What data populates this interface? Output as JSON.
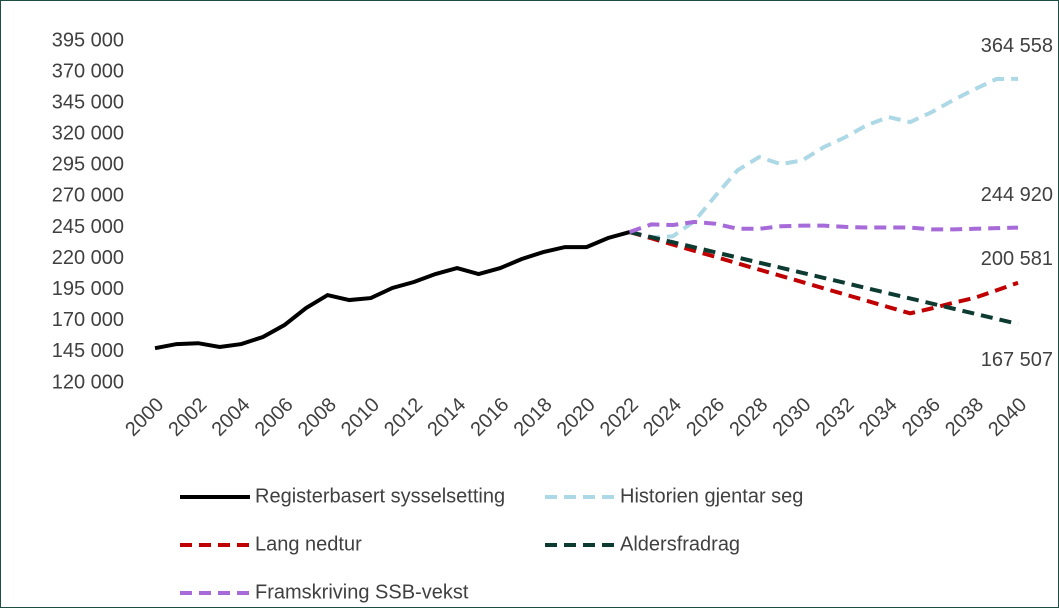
{
  "chart_data": {
    "type": "line",
    "x": [
      2000,
      2001,
      2002,
      2003,
      2004,
      2005,
      2006,
      2007,
      2008,
      2009,
      2010,
      2011,
      2012,
      2013,
      2014,
      2015,
      2016,
      2017,
      2018,
      2019,
      2020,
      2021,
      2022,
      2023,
      2024,
      2025,
      2026,
      2027,
      2028,
      2029,
      2030,
      2031,
      2032,
      2033,
      2034,
      2035,
      2036,
      2037,
      2038,
      2039,
      2040
    ],
    "xlim": [
      2000,
      2040
    ],
    "xticks": [
      2000,
      2002,
      2004,
      2006,
      2008,
      2010,
      2012,
      2014,
      2016,
      2018,
      2020,
      2022,
      2024,
      2026,
      2028,
      2030,
      2032,
      2034,
      2036,
      2038,
      2040
    ],
    "ylim": [
      120000,
      395000
    ],
    "yticks": [
      {
        "value": 120000,
        "label": "120 000"
      },
      {
        "value": 145000,
        "label": "145 000"
      },
      {
        "value": 170000,
        "label": "170 000"
      },
      {
        "value": 195000,
        "label": "195 000"
      },
      {
        "value": 220000,
        "label": "220 000"
      },
      {
        "value": 245000,
        "label": "245 000"
      },
      {
        "value": 270000,
        "label": "270 000"
      },
      {
        "value": 295000,
        "label": "295 000"
      },
      {
        "value": 320000,
        "label": "320 000"
      },
      {
        "value": 345000,
        "label": "345 000"
      },
      {
        "value": 370000,
        "label": "370 000"
      },
      {
        "value": 395000,
        "label": "395 000"
      }
    ],
    "legend": "bottom",
    "series": [
      {
        "name": "Registerbasert sysselsetting",
        "color": "#000000",
        "dashed": false,
        "values": [
          148000,
          151300,
          152000,
          149000,
          151300,
          157000,
          166600,
          180300,
          190700,
          186700,
          188300,
          196400,
          201200,
          207600,
          212400,
          207600,
          212400,
          219700,
          225300,
          229300,
          229300,
          236600,
          241400,
          null,
          null,
          null,
          null,
          null,
          null,
          null,
          null,
          null,
          null,
          null,
          null,
          null,
          null,
          null,
          null,
          null,
          null
        ]
      },
      {
        "name": "Historien gjentar seg",
        "color": "#add8e6",
        "dashed": true,
        "values": [
          null,
          null,
          null,
          null,
          null,
          null,
          null,
          null,
          null,
          null,
          null,
          null,
          null,
          null,
          null,
          null,
          null,
          null,
          null,
          null,
          null,
          null,
          241400,
          237000,
          238000,
          250000,
          271000,
          291000,
          301700,
          296000,
          299000,
          309700,
          317700,
          327400,
          333800,
          329800,
          337800,
          347500,
          356300,
          364400,
          364558
        ],
        "value_labels": [
          null,
          null,
          null,
          null,
          null,
          null,
          null,
          null,
          null,
          null,
          null,
          null,
          null,
          null,
          null,
          null,
          null,
          null,
          null,
          null,
          null,
          null,
          null,
          null,
          null,
          null,
          null,
          null,
          null,
          null,
          null,
          null,
          null,
          null,
          null,
          null,
          null,
          null,
          null,
          null,
          "364 558"
        ]
      },
      {
        "name": "Lang nedtur",
        "color": "#c00000",
        "dashed": true,
        "values": [
          null,
          null,
          null,
          null,
          null,
          null,
          null,
          null,
          null,
          null,
          null,
          null,
          null,
          null,
          null,
          null,
          null,
          null,
          null,
          null,
          null,
          null,
          241400,
          236400,
          231300,
          226300,
          221300,
          216200,
          211200,
          206200,
          201200,
          196100,
          191100,
          186100,
          181000,
          176000,
          180000,
          184500,
          188500,
          194500,
          200581
        ],
        "value_labels": [
          null,
          null,
          null,
          null,
          null,
          null,
          null,
          null,
          null,
          null,
          null,
          null,
          null,
          null,
          null,
          null,
          null,
          null,
          null,
          null,
          null,
          null,
          null,
          null,
          null,
          null,
          null,
          null,
          null,
          null,
          null,
          null,
          null,
          null,
          null,
          null,
          null,
          null,
          null,
          null,
          "200 581"
        ]
      },
      {
        "name": "Aldersfradrag",
        "color": "#0d3b32",
        "dashed": true,
        "values": [
          null,
          null,
          null,
          null,
          null,
          null,
          null,
          null,
          null,
          null,
          null,
          null,
          null,
          null,
          null,
          null,
          null,
          null,
          null,
          null,
          null,
          null,
          241400,
          237300,
          233200,
          229100,
          225000,
          220900,
          216800,
          212700,
          208600,
          204500,
          200400,
          196200,
          192100,
          188000,
          183900,
          179800,
          175700,
          171600,
          167507
        ],
        "value_labels": [
          null,
          null,
          null,
          null,
          null,
          null,
          null,
          null,
          null,
          null,
          null,
          null,
          null,
          null,
          null,
          null,
          null,
          null,
          null,
          null,
          null,
          null,
          null,
          null,
          null,
          null,
          null,
          null,
          null,
          null,
          null,
          null,
          null,
          null,
          null,
          null,
          null,
          null,
          null,
          null,
          "167 507"
        ]
      },
      {
        "name": "Framskriving SSB-vekst",
        "color": "#a66ad9",
        "dashed": true,
        "values": [
          null,
          null,
          null,
          null,
          null,
          null,
          null,
          null,
          null,
          null,
          null,
          null,
          null,
          null,
          null,
          null,
          null,
          null,
          null,
          null,
          null,
          null,
          241400,
          247500,
          247000,
          249500,
          248000,
          244000,
          244000,
          246000,
          246500,
          246500,
          245500,
          245000,
          245000,
          245000,
          243500,
          243500,
          244000,
          244500,
          244920
        ],
        "value_labels": [
          null,
          null,
          null,
          null,
          null,
          null,
          null,
          null,
          null,
          null,
          null,
          null,
          null,
          null,
          null,
          null,
          null,
          null,
          null,
          null,
          null,
          null,
          null,
          null,
          null,
          null,
          null,
          null,
          null,
          null,
          null,
          null,
          null,
          null,
          null,
          null,
          null,
          null,
          null,
          null,
          "244 920"
        ]
      }
    ]
  }
}
